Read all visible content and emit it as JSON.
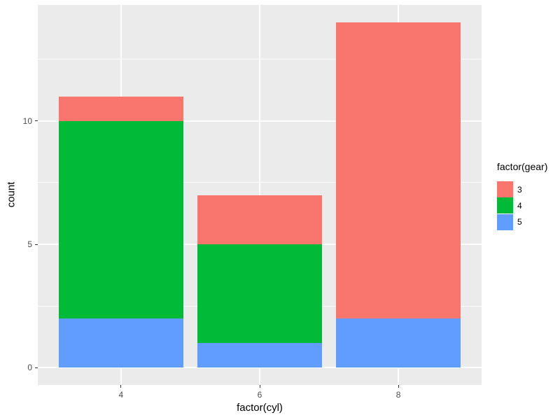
{
  "figure": {
    "background": "#FFFFFF",
    "panel_background": "#EBEBEB",
    "grid_color": "#FFFFFF",
    "tick_mark_color": "#333333",
    "axis_text_color": "#4D4D4D",
    "axis_title_color": "#000000"
  },
  "chart_data": {
    "type": "bar",
    "stacked": true,
    "title": "",
    "xlabel": "factor(cyl)",
    "ylabel": "count",
    "categories": [
      "4",
      "6",
      "8"
    ],
    "series": [
      {
        "name": "3",
        "color": "#F8766D",
        "values": [
          1,
          2,
          12
        ]
      },
      {
        "name": "4",
        "color": "#00BA38",
        "values": [
          8,
          4,
          0
        ]
      },
      {
        "name": "5",
        "color": "#619CFF",
        "values": [
          2,
          1,
          2
        ]
      }
    ],
    "stack_order_bottom_to_top": [
      "5",
      "4",
      "3"
    ],
    "totals": [
      11,
      7,
      14
    ],
    "ylim": [
      0,
      14
    ],
    "yticks": [
      0,
      5,
      10
    ],
    "yticks_minor": [
      2.5,
      7.5,
      12.5
    ],
    "bar_width_fraction": 0.9,
    "grid": true,
    "legend": {
      "title": "factor(gear)",
      "position": "right"
    }
  }
}
